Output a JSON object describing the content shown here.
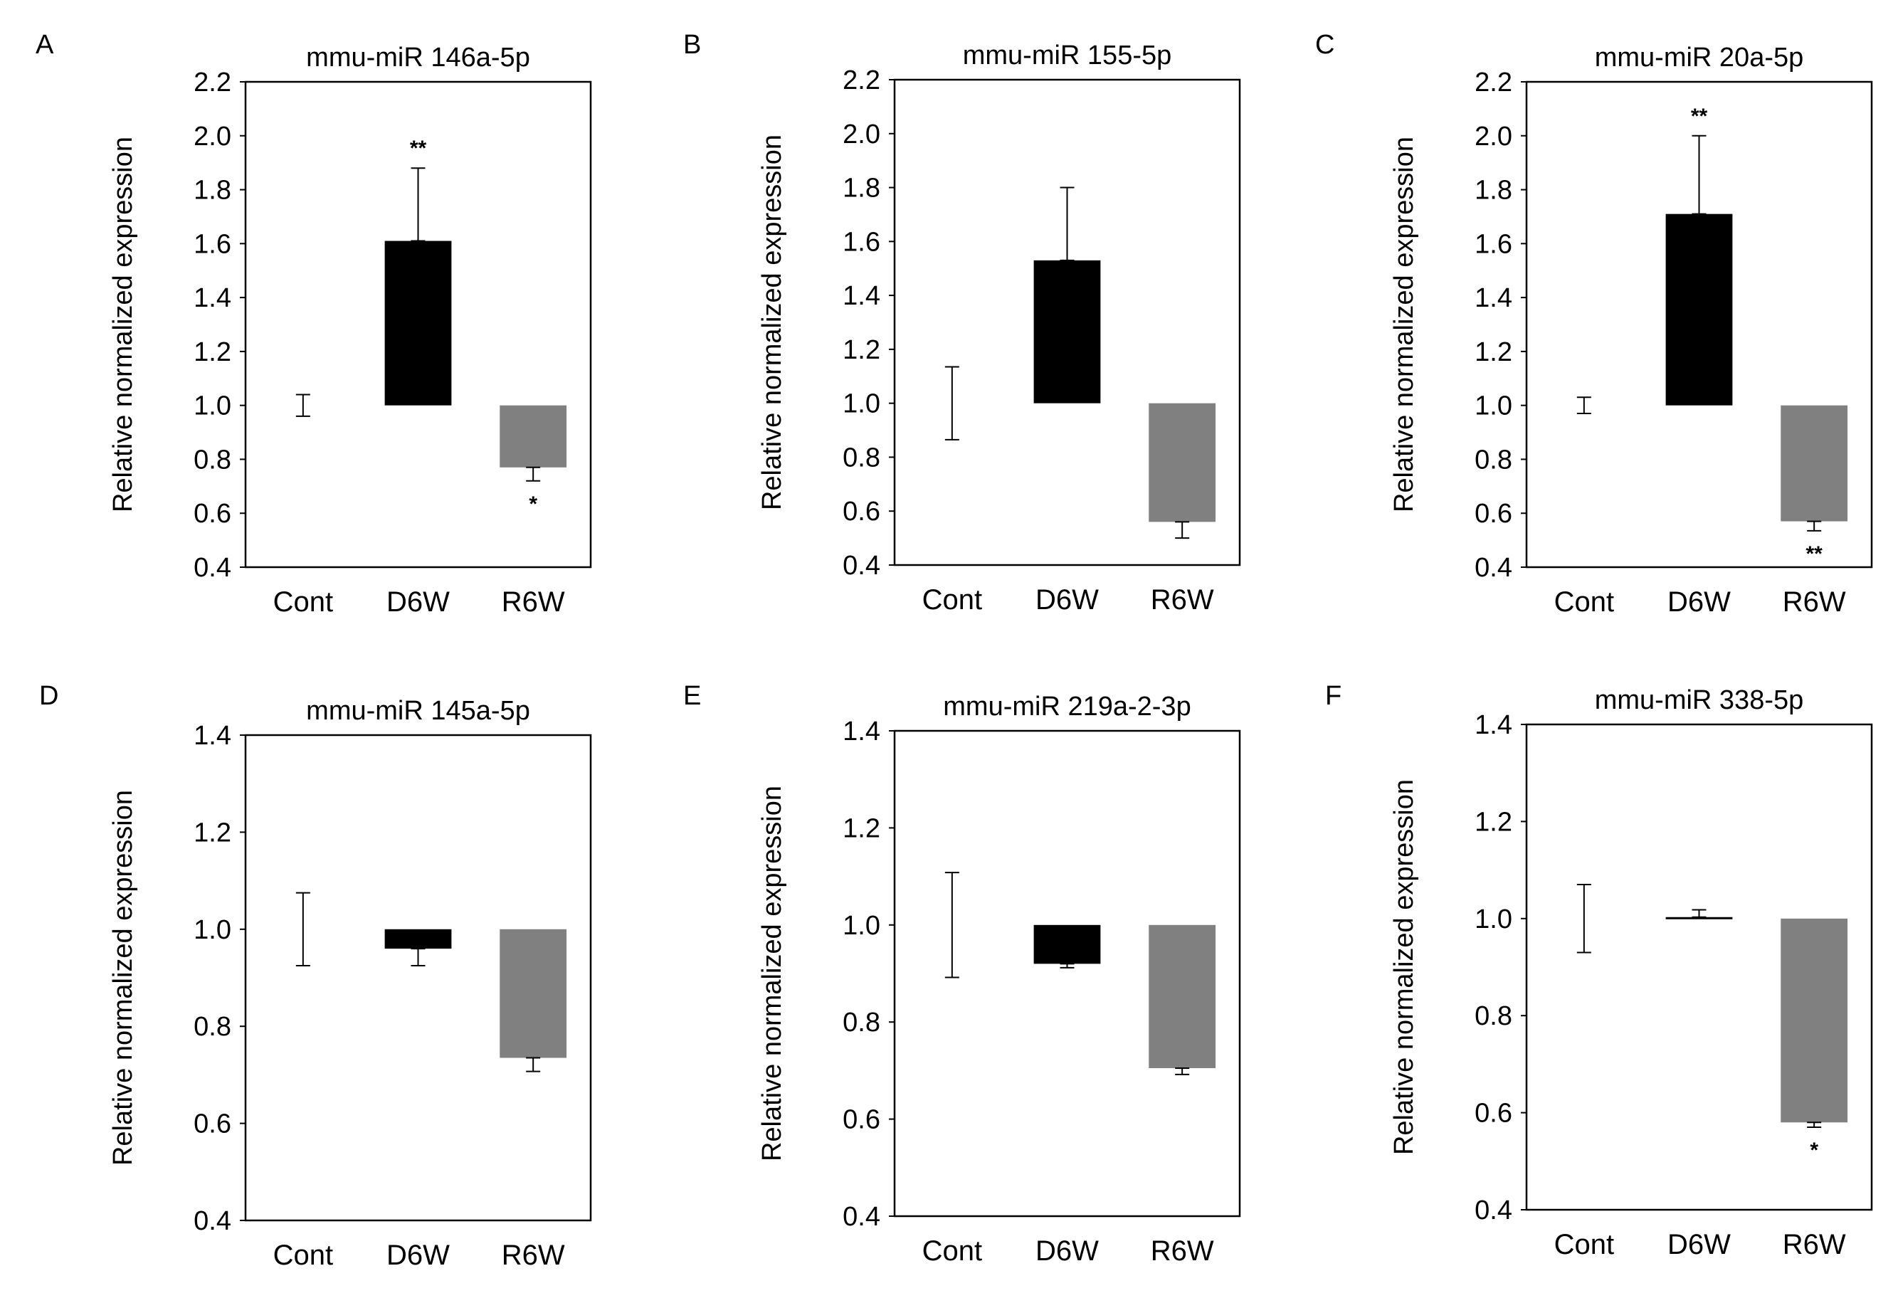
{
  "chart_data": [
    {
      "panel": "A",
      "type": "bar",
      "title": "mmu-miR 146a-5p",
      "ylabel": "Relative normalized expression",
      "ylim": [
        0.4,
        2.2
      ],
      "yticks": [
        "0.4",
        "0.6",
        "0.8",
        "1.0",
        "1.2",
        "1.4",
        "1.6",
        "1.8",
        "2.0",
        "2.2"
      ],
      "baseline": 1.0,
      "categories": [
        "Cont",
        "D6W",
        "R6W"
      ],
      "values": [
        1.0,
        1.61,
        0.77
      ],
      "error": [
        0.04,
        0.27,
        0.05
      ],
      "colors": [
        "#ffffff",
        "#000000",
        "#808080"
      ],
      "significance": [
        "",
        "**",
        "*"
      ]
    },
    {
      "panel": "B",
      "type": "bar",
      "title": "mmu-miR 155-5p",
      "ylabel": "Relative normalized expression",
      "ylim": [
        0.4,
        2.2
      ],
      "yticks": [
        "0.4",
        "0.6",
        "0.8",
        "1.0",
        "1.2",
        "1.4",
        "1.6",
        "1.8",
        "2.0",
        "2.2"
      ],
      "baseline": 1.0,
      "categories": [
        "Cont",
        "D6W",
        "R6W"
      ],
      "values": [
        1.0,
        1.53,
        0.56
      ],
      "error": [
        0.135,
        0.27,
        0.06
      ],
      "colors": [
        "#ffffff",
        "#000000",
        "#808080"
      ],
      "significance": [
        "",
        "",
        ""
      ]
    },
    {
      "panel": "C",
      "type": "bar",
      "title": "mmu-miR 20a-5p",
      "ylabel": "Relative normalized expression",
      "ylim": [
        0.4,
        2.2
      ],
      "yticks": [
        "0.4",
        "0.6",
        "0.8",
        "1.0",
        "1.2",
        "1.4",
        "1.6",
        "1.8",
        "2.0",
        "2.2"
      ],
      "baseline": 1.0,
      "categories": [
        "Cont",
        "D6W",
        "R6W"
      ],
      "values": [
        1.0,
        1.71,
        0.57
      ],
      "error": [
        0.03,
        0.29,
        0.035
      ],
      "colors": [
        "#ffffff",
        "#000000",
        "#808080"
      ],
      "significance": [
        "",
        "**",
        "**"
      ]
    },
    {
      "panel": "D",
      "type": "bar",
      "title": "mmu-miR 145a-5p",
      "ylabel": "Relative normalized expression",
      "ylim": [
        0.4,
        1.4
      ],
      "yticks": [
        "0.4",
        "0.6",
        "0.8",
        "1.0",
        "1.2",
        "1.4"
      ],
      "baseline": 1.0,
      "categories": [
        "Cont",
        "D6W",
        "R6W"
      ],
      "values": [
        1.0,
        0.96,
        0.735
      ],
      "error": [
        0.075,
        0.035,
        0.028
      ],
      "colors": [
        "#ffffff",
        "#000000",
        "#808080"
      ],
      "significance": [
        "",
        "",
        ""
      ]
    },
    {
      "panel": "E",
      "type": "bar",
      "title": "mmu-miR 219a-2-3p",
      "ylabel": "Relative normalized expression",
      "ylim": [
        0.4,
        1.4
      ],
      "yticks": [
        "0.4",
        "0.6",
        "0.8",
        "1.0",
        "1.2",
        "1.4"
      ],
      "baseline": 1.0,
      "categories": [
        "Cont",
        "D6W",
        "R6W"
      ],
      "values": [
        1.0,
        0.92,
        0.705
      ],
      "error": [
        0.108,
        0.008,
        0.013
      ],
      "colors": [
        "#ffffff",
        "#000000",
        "#808080"
      ],
      "significance": [
        "",
        "",
        ""
      ]
    },
    {
      "panel": "F",
      "type": "bar",
      "title": "mmu-miR 338-5p",
      "ylabel": "Relative normalized expression",
      "ylim": [
        0.4,
        1.4
      ],
      "yticks": [
        "0.4",
        "0.6",
        "0.8",
        "1.0",
        "1.2",
        "1.4"
      ],
      "baseline": 1.0,
      "categories": [
        "Cont",
        "D6W",
        "R6W"
      ],
      "values": [
        1.0,
        1.003,
        0.58
      ],
      "error": [
        0.07,
        0.015,
        0.01
      ],
      "colors": [
        "#ffffff",
        "#000000",
        "#808080"
      ],
      "significance": [
        "",
        "",
        "*"
      ]
    }
  ]
}
